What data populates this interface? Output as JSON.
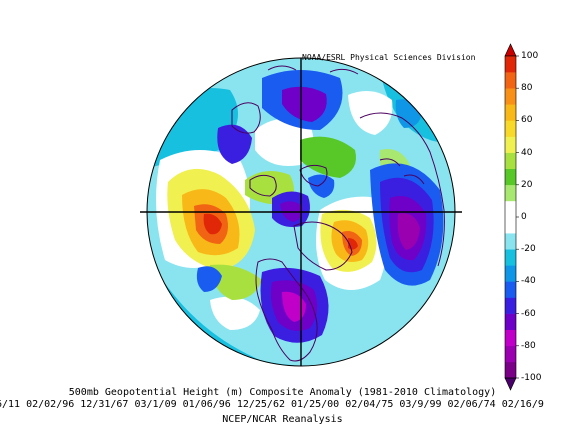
{
  "credit": "NOAA/ESRL Physical Sciences Division",
  "title": "500mb Geopotential Height (m) Composite Anomaly (1981-2010 Climatology)",
  "dates": "6/11 02/02/96 12/31/67 03/1/09 01/06/96 12/25/62 01/25/00 02/04/75 03/9/99 02/06/74 02/16/9",
  "footer": "NCEP/NCAR Reanalysis",
  "colorbar": {
    "labels": [
      "100",
      "80",
      "60",
      "40",
      "20",
      "0",
      "-20",
      "-40",
      "-60",
      "-80",
      "-100"
    ],
    "bands": [
      "#7a0088",
      "#9a00b0",
      "#c000c8",
      "#6e00c8",
      "#3a1fe0",
      "#1a5cf0",
      "#1096e6",
      "#18c0e0",
      "#8ae4f0",
      "#ffffff",
      "#ffffff",
      "#a8e870",
      "#58c828",
      "#a8e040",
      "#f0f050",
      "#f8d828",
      "#f8b818",
      "#f89018",
      "#f06414",
      "#e02808"
    ],
    "arrow_top_color": "#c80000",
    "arrow_bottom_color": "#4a006a"
  }
}
